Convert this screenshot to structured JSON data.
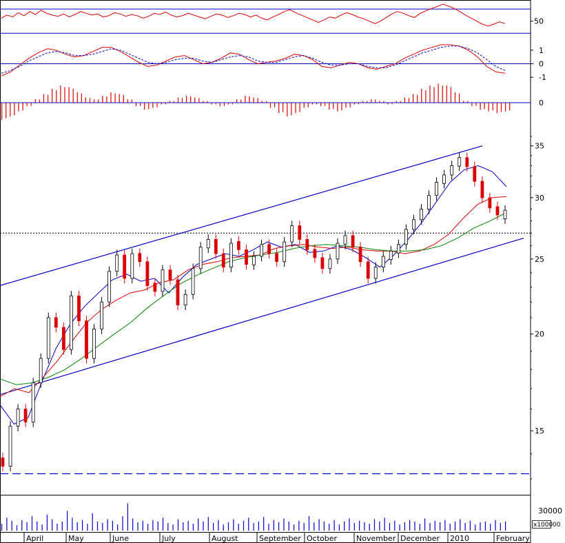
{
  "colors": {
    "frame": "#000000",
    "panel_line": "#0000cc",
    "rsi": "#dd0000",
    "macd": "#dd0000",
    "macd_signal": "#0000cc",
    "histogram": "#dd0000",
    "up_candle": "#000000",
    "down_candle": "#dd0000",
    "ma_short": "#0000cc",
    "ma_mid": "#dd0000",
    "ma_long": "#008800",
    "channel": "#0000cc",
    "support": "#0000cc",
    "reference": "#000000",
    "volume": "#0000cc"
  },
  "chart_data": [
    {
      "type": "line",
      "panel": "rsi",
      "y_ticks": [
        "50"
      ],
      "reference_levels": [
        30,
        70
      ],
      "series": [
        {
          "values": [
            55,
            60,
            57,
            64,
            59,
            66,
            61,
            68,
            63,
            60,
            58,
            62,
            57,
            61,
            66,
            63,
            60,
            62,
            57,
            59,
            64,
            62,
            58,
            61,
            59,
            55,
            58,
            63,
            61,
            65,
            60,
            57,
            59,
            63,
            60,
            57,
            54,
            58,
            62,
            60,
            56,
            59,
            63,
            61,
            57,
            60,
            55,
            52,
            57,
            61,
            66,
            69,
            64,
            60,
            56,
            52,
            48,
            52,
            57,
            55,
            60,
            64,
            61,
            57,
            54,
            50,
            46,
            50,
            56,
            62,
            66,
            63,
            59,
            56,
            63,
            67,
            71,
            74,
            78,
            75,
            71,
            66,
            60,
            55,
            50,
            45,
            42,
            45,
            49,
            46
          ]
        }
      ]
    },
    {
      "type": "line",
      "panel": "macd",
      "y_ticks": [
        "1",
        "0",
        "-1"
      ],
      "series": [
        {
          "values": [
            -0.9,
            -0.6,
            -0.1,
            0.4,
            0.8,
            1.1,
            1.0,
            0.7,
            0.5,
            0.6,
            0.9,
            1.2,
            1.2,
            0.9,
            0.5,
            0.1,
            -0.2,
            -0.1,
            0.2,
            0.5,
            0.6,
            0.3,
            0.0,
            0.1,
            0.4,
            0.8,
            0.7,
            0.3,
            0.0,
            0.1,
            0.2,
            0.4,
            0.7,
            0.6,
            0.3,
            -0.2,
            -0.3,
            -0.1,
            0.1,
            0.0,
            -0.3,
            -0.4,
            -0.2,
            0.0,
            0.4,
            0.7,
            1.0,
            1.2,
            1.4,
            1.4,
            1.3,
            1.0,
            0.5,
            -0.2,
            -0.6,
            -0.7
          ]
        },
        {
          "values": [
            -0.7,
            -0.5,
            -0.2,
            0.2,
            0.5,
            0.8,
            0.9,
            0.8,
            0.6,
            0.6,
            0.7,
            0.9,
            1.1,
            1.0,
            0.7,
            0.4,
            0.1,
            0.0,
            0.1,
            0.3,
            0.4,
            0.4,
            0.2,
            0.1,
            0.3,
            0.5,
            0.6,
            0.5,
            0.2,
            0.1,
            0.1,
            0.3,
            0.5,
            0.6,
            0.4,
            0.1,
            -0.1,
            -0.1,
            0.0,
            0.0,
            -0.2,
            -0.3,
            -0.3,
            -0.1,
            0.2,
            0.5,
            0.8,
            1.0,
            1.2,
            1.3,
            1.3,
            1.1,
            0.8,
            0.3,
            -0.2,
            -0.5
          ]
        }
      ]
    },
    {
      "type": "bar",
      "panel": "macd_histogram",
      "y_ticks": [
        "0"
      ],
      "values": [
        -1.0,
        -0.8,
        -0.5,
        -0.2,
        0.2,
        0.5,
        0.8,
        1.0,
        0.9,
        0.6,
        0.3,
        0.2,
        0.4,
        0.6,
        0.5,
        0.2,
        -0.2,
        -0.4,
        -0.3,
        -0.1,
        0.1,
        0.3,
        0.4,
        0.3,
        0.1,
        -0.1,
        -0.2,
        -0.1,
        0.2,
        0.4,
        0.3,
        0.1,
        -0.3,
        -0.6,
        -0.8,
        -0.6,
        -0.3,
        -0.1,
        -0.2,
        -0.4,
        -0.5,
        -0.3,
        -0.1,
        0.1,
        0.2,
        0.1,
        -0.1,
        0.1,
        0.3,
        0.5,
        0.8,
        1.0,
        1.1,
        1.0,
        0.6,
        0.1,
        -0.2,
        -0.4,
        -0.5,
        -0.6,
        -0.5
      ]
    },
    {
      "type": "line",
      "panel": "price",
      "y_scale": "log",
      "ylim": [
        12.4,
        37.5
      ],
      "y_ticks": [
        "35",
        "30",
        "25",
        "20",
        "15"
      ],
      "x_labels": [
        "April",
        "May",
        "June",
        "July",
        "August",
        "September",
        "October",
        "November",
        "December",
        "2010",
        "February"
      ],
      "candlesticks": {
        "close": [
          13.5,
          15.2,
          16.0,
          15.4,
          17.3,
          18.6,
          21.0,
          20.4,
          19.1,
          22.4,
          20.8,
          18.6,
          20.3,
          22.0,
          24.1,
          25.3,
          23.6,
          25.4,
          24.8,
          23.1,
          22.7,
          24.2,
          23.5,
          21.8,
          22.5,
          24.3,
          25.9,
          26.5,
          25.4,
          24.4,
          26.2,
          25.7,
          24.6,
          25.2,
          26.1,
          25.4,
          24.8,
          26.3,
          27.6,
          26.5,
          25.7,
          25.1,
          24.3,
          25.0,
          26.2,
          26.8,
          25.9,
          24.8,
          23.6,
          24.4,
          25.2,
          25.6,
          26.1,
          27.3,
          28.1,
          29.0,
          30.2,
          31.4,
          32.1,
          33.0,
          33.8,
          32.9,
          31.5,
          30.0,
          29.1,
          28.5,
          28.9
        ],
        "color": [
          "down",
          "up",
          "up",
          "down",
          "up",
          "up",
          "up",
          "down",
          "down",
          "up",
          "down",
          "down",
          "up",
          "up",
          "up",
          "up",
          "down",
          "up",
          "down",
          "down",
          "down",
          "up",
          "down",
          "down",
          "up",
          "up",
          "up",
          "up",
          "down",
          "down",
          "up",
          "down",
          "down",
          "up",
          "up",
          "down",
          "down",
          "up",
          "up",
          "down",
          "down",
          "down",
          "down",
          "up",
          "up",
          "up",
          "down",
          "down",
          "down",
          "up",
          "up",
          "up",
          "up",
          "up",
          "up",
          "up",
          "up",
          "up",
          "up",
          "up",
          "up",
          "down",
          "down",
          "down",
          "down",
          "down",
          "up"
        ]
      },
      "series": [
        {
          "values": [
            16.2,
            15.3,
            15.6,
            17.4,
            19.2,
            20.6,
            21.7,
            22.6,
            23.5,
            23.9,
            23.4,
            23.6,
            22.6,
            23.7,
            24.6,
            25.0,
            25.4,
            25.2,
            25.7,
            26.3,
            25.9,
            26.1,
            25.5,
            25.6,
            26.0,
            25.7,
            25.1,
            24.4,
            25.3,
            26.5,
            27.9,
            29.6,
            31.4,
            32.6,
            33.0,
            32.4,
            31.0
          ]
        },
        {
          "values": [
            16.6,
            17.0,
            16.8,
            17.6,
            18.5,
            19.6,
            20.7,
            21.5,
            22.1,
            22.6,
            22.8,
            23.3,
            23.5,
            24.2,
            24.6,
            24.8,
            25.1,
            25.2,
            25.3,
            25.8,
            26.0,
            26.1,
            25.9,
            25.8,
            25.9,
            25.7,
            25.6,
            25.6,
            25.4,
            25.6,
            26.1,
            26.9,
            28.2,
            29.4,
            30.0,
            30.1
          ]
        },
        {
          "values": [
            17.5,
            17.2,
            17.3,
            17.6,
            18.0,
            18.6,
            19.3,
            20.0,
            20.7,
            21.6,
            22.4,
            23.2,
            23.8,
            24.3,
            24.8,
            25.1,
            25.3,
            25.5,
            25.8,
            26.0,
            26.1,
            26.0,
            25.9,
            25.7,
            25.6,
            25.6,
            25.7,
            26.0,
            26.6,
            27.4,
            28.0,
            28.7
          ]
        }
      ],
      "channel": {
        "upper": [
          23.1,
          35.0
        ],
        "lower": [
          16.7,
          26.6
        ]
      },
      "reference_level": 27.0,
      "support_level": 13.2
    },
    {
      "type": "bar",
      "panel": "volume",
      "y_ticks": [
        "30000"
      ],
      "unit_label": "x1000",
      "unit_suffix": "00",
      "values": [
        9,
        17,
        13,
        7,
        14,
        11,
        19,
        12,
        8,
        21,
        15,
        9,
        12,
        26,
        17,
        11,
        14,
        9,
        23,
        12,
        10,
        15,
        13,
        8,
        19,
        36,
        16,
        11,
        13,
        9,
        14,
        12,
        17,
        10,
        8,
        15,
        11,
        13,
        9,
        16,
        12,
        18,
        10,
        14,
        8,
        11,
        15,
        9,
        13,
        17,
        10,
        12,
        18,
        9,
        14,
        11,
        16,
        12,
        8,
        13,
        10,
        19,
        11,
        15,
        12,
        9,
        14,
        8,
        12,
        16,
        10,
        13,
        11,
        9,
        15,
        12,
        17,
        10,
        13,
        8,
        11,
        14,
        12,
        9,
        16,
        10,
        13,
        11,
        14,
        9,
        12,
        15,
        10,
        13,
        8,
        11,
        12,
        9,
        14,
        10,
        12
      ]
    }
  ]
}
